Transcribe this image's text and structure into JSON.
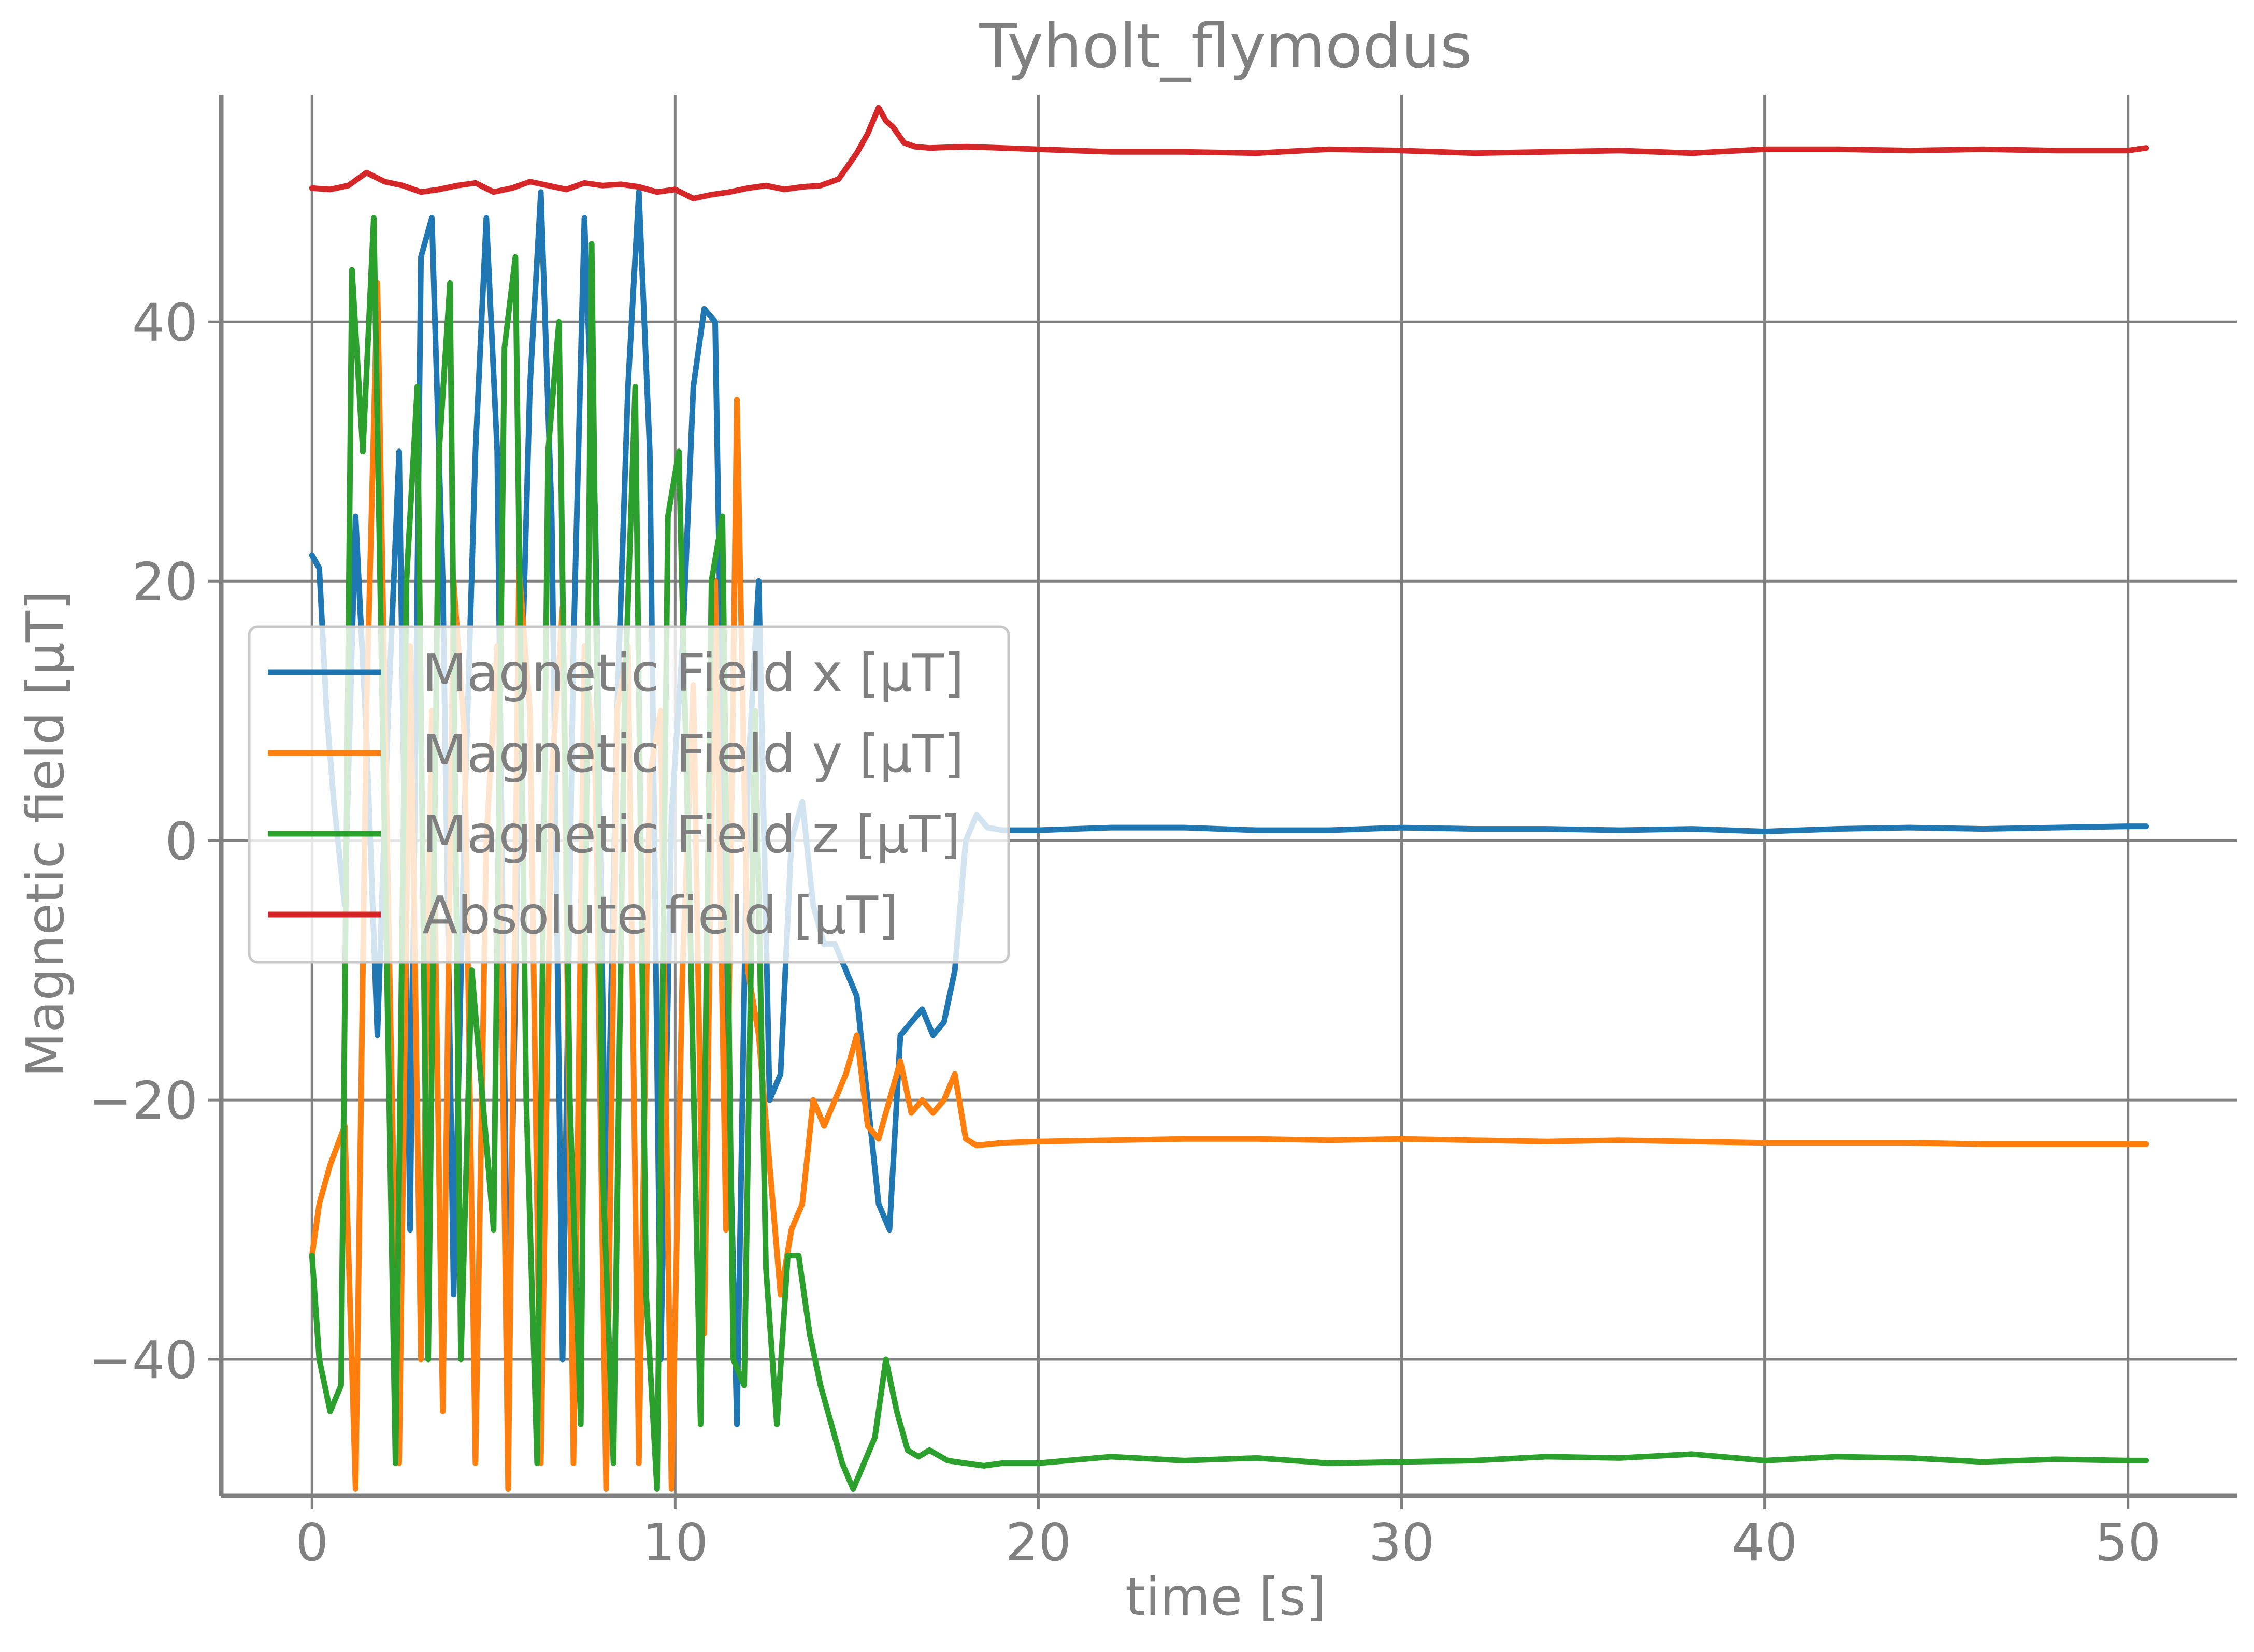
{
  "chart_data": {
    "type": "line",
    "title": "Tyholt_flymodus",
    "xlabel": "time [s]",
    "ylabel": "Magnetic field [μT]",
    "xlim": [
      -2.5,
      53.0
    ],
    "ylim": [
      -50.5,
      57.5
    ],
    "xticks": [
      0,
      10,
      20,
      30,
      40,
      50
    ],
    "yticks": [
      -40,
      -20,
      0,
      20,
      40
    ],
    "xtick_labels": [
      "0",
      "10",
      "20",
      "30",
      "40",
      "50"
    ],
    "ytick_labels": [
      "−40",
      "−20",
      "0",
      "20",
      "40"
    ],
    "grid": true,
    "legend_position": "center-left",
    "series": [
      {
        "name": "Magnetic Field x [μT]",
        "color": "#1f77b4",
        "x": [
          0,
          0.2,
          0.4,
          0.6,
          0.9,
          1.2,
          1.5,
          1.8,
          2.1,
          2.4,
          2.7,
          3.0,
          3.3,
          3.6,
          3.9,
          4.2,
          4.5,
          4.8,
          5.1,
          5.4,
          5.7,
          6.0,
          6.3,
          6.6,
          6.9,
          7.2,
          7.5,
          7.8,
          8.1,
          8.4,
          8.7,
          9.0,
          9.3,
          9.6,
          9.9,
          10.2,
          10.5,
          10.8,
          11.1,
          11.4,
          11.7,
          12.0,
          12.3,
          12.6,
          12.9,
          13.2,
          13.5,
          13.8,
          14.1,
          14.4,
          14.7,
          15.0,
          15.3,
          15.6,
          15.9,
          16.2,
          16.5,
          16.8,
          17.1,
          17.4,
          17.7,
          18.0,
          18.3,
          18.6,
          19.0,
          20,
          22,
          24,
          26,
          28,
          30,
          32,
          34,
          36,
          38,
          40,
          42,
          44,
          46,
          48,
          50,
          50.5
        ],
        "y": [
          22,
          21,
          10,
          3,
          -5,
          25,
          8,
          -15,
          10,
          30,
          -30,
          45,
          48,
          20,
          -35,
          2,
          30,
          48,
          30,
          -42,
          5,
          35,
          50,
          25,
          -40,
          15,
          48,
          25,
          -30,
          10,
          35,
          50,
          30,
          -40,
          2,
          15,
          35,
          41,
          40,
          -10,
          -45,
          5,
          20,
          -20,
          -18,
          0,
          3,
          -5,
          -8,
          -8,
          -10,
          -12,
          -20,
          -28,
          -30,
          -15,
          -14,
          -13,
          -15,
          -14,
          -10,
          0,
          2,
          1,
          0.8,
          0.8,
          1,
          1,
          0.8,
          0.8,
          1,
          0.9,
          0.9,
          0.8,
          0.9,
          0.7,
          0.9,
          1,
          0.9,
          1.0,
          1.1,
          1.1
        ]
      },
      {
        "name": "Magnetic Field y [μT]",
        "color": "#ff7f0e",
        "x": [
          0,
          0.2,
          0.5,
          0.9,
          1.2,
          1.5,
          1.8,
          2.1,
          2.4,
          2.7,
          3.0,
          3.3,
          3.6,
          3.9,
          4.2,
          4.5,
          4.8,
          5.1,
          5.4,
          5.7,
          6.0,
          6.3,
          6.6,
          6.9,
          7.2,
          7.5,
          7.8,
          8.1,
          8.4,
          8.7,
          9.0,
          9.3,
          9.6,
          9.9,
          10.2,
          10.5,
          10.8,
          11.1,
          11.4,
          11.7,
          12.0,
          12.3,
          12.6,
          12.9,
          13.2,
          13.5,
          13.8,
          14.1,
          14.4,
          14.7,
          15.0,
          15.3,
          15.6,
          15.9,
          16.2,
          16.5,
          16.8,
          17.1,
          17.4,
          17.7,
          18.0,
          18.3,
          19,
          20,
          22,
          24,
          26,
          28,
          30,
          32,
          34,
          36,
          38,
          40,
          42,
          44,
          46,
          48,
          50,
          50.5
        ],
        "y": [
          -32,
          -28,
          -25,
          -22,
          -50,
          10,
          43,
          -5,
          -48,
          15,
          -40,
          10,
          -44,
          20,
          8,
          -48,
          0,
          15,
          -50,
          21,
          10,
          -48,
          5,
          18,
          -48,
          15,
          5,
          -50,
          10,
          15,
          -48,
          5,
          10,
          -50,
          -10,
          12,
          -38,
          20,
          -30,
          34,
          -10,
          -15,
          -25,
          -35,
          -30,
          -28,
          -20,
          -22,
          -20,
          -18,
          -15,
          -22,
          -23,
          -20,
          -17,
          -21,
          -20,
          -21,
          -20,
          -18,
          -23,
          -23.5,
          -23.3,
          -23.2,
          -23.1,
          -23,
          -23,
          -23.1,
          -23,
          -23.1,
          -23.2,
          -23.1,
          -23.2,
          -23.3,
          -23.3,
          -23.3,
          -23.4,
          -23.4,
          -23.4,
          -23.4
        ]
      },
      {
        "name": "Magnetic Field z [μT]",
        "color": "#2ca02c",
        "x": [
          0,
          0.2,
          0.5,
          0.8,
          1.1,
          1.4,
          1.7,
          2.0,
          2.3,
          2.6,
          2.9,
          3.2,
          3.5,
          3.8,
          4.1,
          4.4,
          4.7,
          5.0,
          5.3,
          5.6,
          5.9,
          6.2,
          6.5,
          6.8,
          7.1,
          7.4,
          7.7,
          8.0,
          8.3,
          8.6,
          8.9,
          9.2,
          9.5,
          9.8,
          10.1,
          10.4,
          10.7,
          11.0,
          11.3,
          11.6,
          11.9,
          12.2,
          12.5,
          12.8,
          13.1,
          13.4,
          13.7,
          14.0,
          14.3,
          14.6,
          14.9,
          15.2,
          15.5,
          15.8,
          16.1,
          16.4,
          16.7,
          17.0,
          17.5,
          18.0,
          18.5,
          19,
          20,
          22,
          24,
          26,
          28,
          30,
          32,
          34,
          36,
          38,
          40,
          42,
          44,
          46,
          48,
          50,
          50.5
        ],
        "y": [
          -32,
          -40,
          -44,
          -42,
          44,
          30,
          48,
          0,
          -48,
          20,
          35,
          -40,
          30,
          43,
          -40,
          -10,
          -20,
          -30,
          38,
          45,
          -20,
          -48,
          30,
          40,
          -20,
          -45,
          46,
          -25,
          -48,
          10,
          35,
          -35,
          -50,
          25,
          30,
          -5,
          -45,
          20,
          25,
          -40,
          -42,
          10,
          -33,
          -45,
          -32,
          -32,
          -38,
          -42,
          -45,
          -48,
          -50,
          -48,
          -46,
          -40,
          -44,
          -47,
          -47.5,
          -47,
          -47.8,
          -48,
          -48.2,
          -48,
          -48,
          -47.5,
          -47.8,
          -47.6,
          -48,
          -47.9,
          -47.8,
          -47.5,
          -47.6,
          -47.3,
          -47.8,
          -47.5,
          -47.6,
          -47.9,
          -47.7,
          -47.8,
          -47.8
        ]
      },
      {
        "name": "Absolute field [μT]",
        "color": "#d62728",
        "x": [
          0,
          0.5,
          1.0,
          1.5,
          2.0,
          2.5,
          3.0,
          3.5,
          4.0,
          4.5,
          5.0,
          5.5,
          6.0,
          6.5,
          7.0,
          7.5,
          8.0,
          8.5,
          9.0,
          9.5,
          10.0,
          10.5,
          11.0,
          11.5,
          12.0,
          12.5,
          13.0,
          13.5,
          14.0,
          14.5,
          15.0,
          15.3,
          15.6,
          15.8,
          16.0,
          16.3,
          16.6,
          17.0,
          18,
          20,
          22,
          24,
          26,
          28,
          30,
          32,
          34,
          36,
          38,
          40,
          42,
          44,
          46,
          48,
          50,
          50.5
        ],
        "y": [
          50.3,
          50.2,
          50.5,
          51.5,
          50.8,
          50.5,
          50.0,
          50.2,
          50.5,
          50.7,
          50.0,
          50.3,
          50.8,
          50.5,
          50.2,
          50.7,
          50.5,
          50.6,
          50.4,
          50.0,
          50.2,
          49.5,
          49.8,
          50.0,
          50.3,
          50.5,
          50.2,
          50.4,
          50.5,
          51.0,
          53.0,
          54.5,
          56.5,
          55.5,
          55.0,
          53.8,
          53.5,
          53.4,
          53.5,
          53.3,
          53.1,
          53.1,
          53.0,
          53.3,
          53.2,
          53.0,
          53.1,
          53.2,
          53.0,
          53.3,
          53.3,
          53.2,
          53.3,
          53.2,
          53.2,
          53.4
        ]
      }
    ]
  }
}
